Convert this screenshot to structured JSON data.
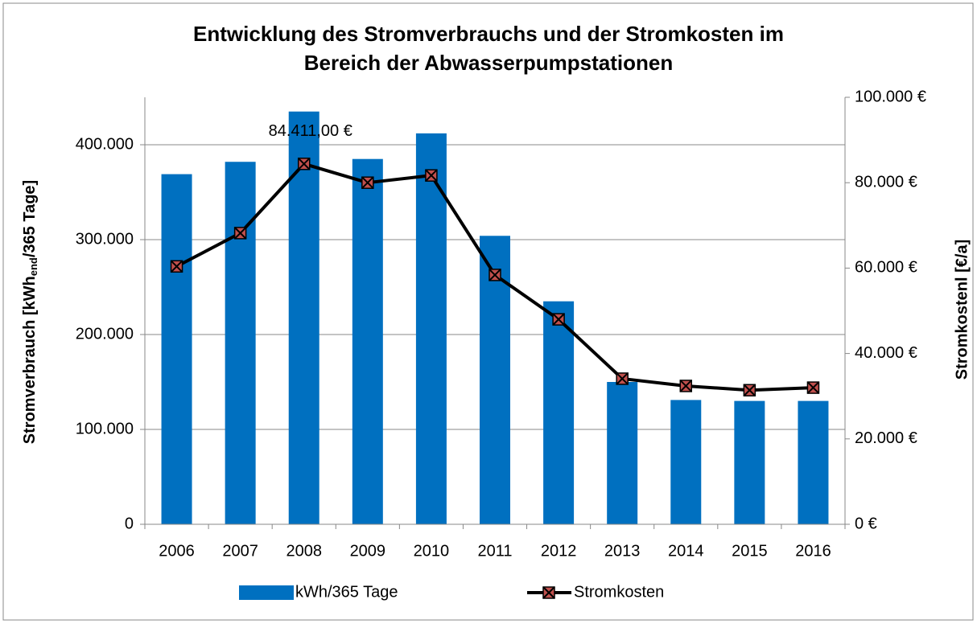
{
  "chart_data": {
    "type": "bar_line",
    "title": [
      "Entwicklung des Stromverbrauchs und der Stromkosten im",
      "Bereich der Abwasserpumpstationen"
    ],
    "ylabel": [
      "Stromverbrauch [kWh",
      "end",
      "/365 Tage]"
    ],
    "y2label": "Stromkostenl [€/a]",
    "categories": [
      "2006",
      "2007",
      "2008",
      "2009",
      "2010",
      "2011",
      "2012",
      "2013",
      "2014",
      "2015",
      "2016"
    ],
    "series": [
      {
        "name": "kWh/365 Tage",
        "type": "bar",
        "color": "#0070c0",
        "values": [
          369000,
          382000,
          435000,
          385000,
          412000,
          304000,
          235000,
          150000,
          131000,
          130000,
          130000
        ]
      },
      {
        "name": "Stromkosten",
        "type": "line",
        "axis": "y2",
        "color": "#000000",
        "marker_color": "#c0504d",
        "values": [
          60400,
          68200,
          84411,
          80000,
          81700,
          58400,
          48000,
          34100,
          32400,
          31400,
          32000
        ],
        "value_labels": [
          null,
          null,
          "84.411,00 €",
          null,
          null,
          null,
          null,
          null,
          null,
          null,
          null
        ]
      }
    ],
    "ylim": [
      0,
      450000
    ],
    "yticks": [
      0,
      {
        "value": 100000,
        "label": "100.000"
      },
      {
        "value": 200000,
        "label": "200.000"
      },
      {
        "value": 300000,
        "label": "300.000"
      },
      {
        "value": 400000,
        "label": "400.000"
      }
    ],
    "y2lim": [
      0,
      100000
    ],
    "y2ticks": [
      {
        "value": 0,
        "label": "0 €"
      },
      {
        "value": 20000,
        "label": "20.000 €"
      },
      {
        "value": 40000,
        "label": "40.000 €"
      },
      {
        "value": 60000,
        "label": "60.000 €"
      },
      {
        "value": 80000,
        "label": "80.000 €"
      },
      {
        "value": 100000,
        "label": "100.000 €"
      }
    ],
    "grid": true,
    "legend": "bottom"
  }
}
